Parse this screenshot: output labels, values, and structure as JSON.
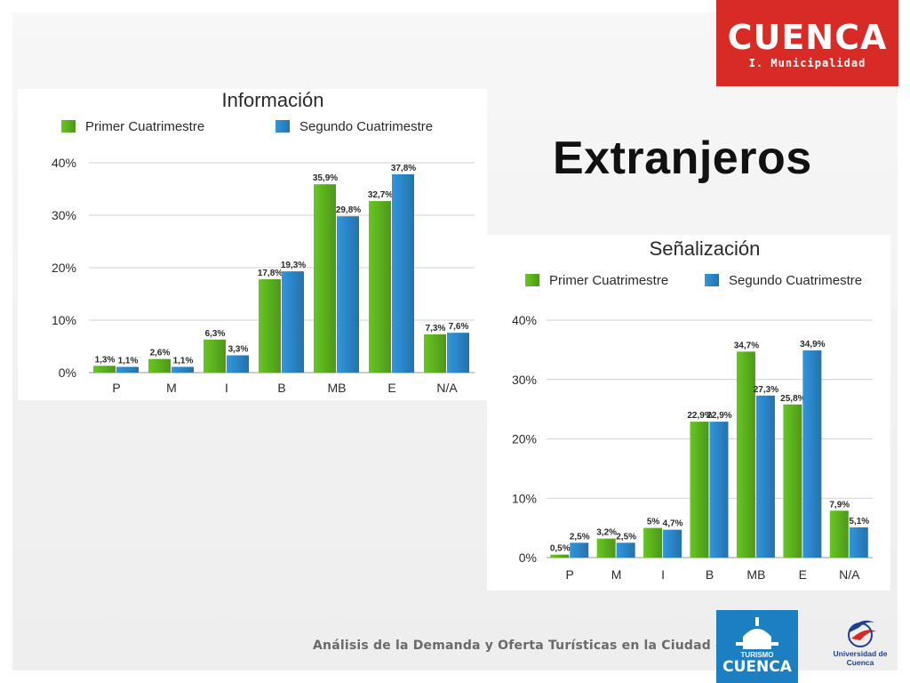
{
  "slide": {
    "title": "Extranjeros",
    "footer": "Análisis de la Demanda y Oferta Turísticas en la Ciudad de Cuenca"
  },
  "logos": {
    "cuenca_word": "CUENCA",
    "cuenca_sub": "I. Municipalidad",
    "turismo_small": "TURISMO",
    "turismo_big": "CUENCA",
    "university": "Universidad de Cuenca"
  },
  "colors": {
    "series1": "#5cb21e",
    "series2": "#2b86c8",
    "logo_red": "#d92b26",
    "logo_blue": "#1b7fc1"
  },
  "chart_data": [
    {
      "type": "bar",
      "title": "Información",
      "categories": [
        "P",
        "M",
        "I",
        "B",
        "MB",
        "E",
        "N/A"
      ],
      "series": [
        {
          "name": "Primer Cuatrimestre",
          "values": [
            1.3,
            2.6,
            6.3,
            17.8,
            35.9,
            32.7,
            7.3
          ],
          "labels": [
            "1,3%",
            "2,6%",
            "6,3%",
            "17,8%",
            "35,9%",
            "32,7%",
            "7,3%"
          ]
        },
        {
          "name": "Segundo Cuatrimestre",
          "values": [
            1.1,
            1.1,
            3.3,
            19.3,
            29.8,
            37.8,
            7.6
          ],
          "labels": [
            "1,1%",
            "1,1%",
            "3,3%",
            "19,3%",
            "29,8%",
            "37,8%",
            "7,6%"
          ]
        }
      ],
      "yticks": [
        "0%",
        "10%",
        "20%",
        "30%",
        "40%"
      ],
      "ylim": [
        0,
        40
      ],
      "grid": true,
      "legend": "top"
    },
    {
      "type": "bar",
      "title": "Señalización",
      "categories": [
        "P",
        "M",
        "I",
        "B",
        "MB",
        "E",
        "N/A"
      ],
      "series": [
        {
          "name": "Primer Cuatrimestre",
          "values": [
            0.5,
            3.2,
            5,
            22.9,
            34.7,
            25.8,
            7.9
          ],
          "labels": [
            "0,5%",
            "3,2%",
            "5%",
            "22,9%",
            "34,7%",
            "25,8%",
            "7,9%"
          ]
        },
        {
          "name": "Segundo Cuatrimestre",
          "values": [
            2.5,
            2.5,
            4.7,
            22.9,
            27.3,
            34.9,
            5.1
          ],
          "labels": [
            "2,5%",
            "2,5%",
            "4,7%",
            "22,9%",
            "27,3%",
            "34,9%",
            "5,1%"
          ]
        }
      ],
      "yticks": [
        "0%",
        "10%",
        "20%",
        "30%",
        "40%"
      ],
      "ylim": [
        0,
        40
      ],
      "grid": true,
      "legend": "top"
    }
  ]
}
